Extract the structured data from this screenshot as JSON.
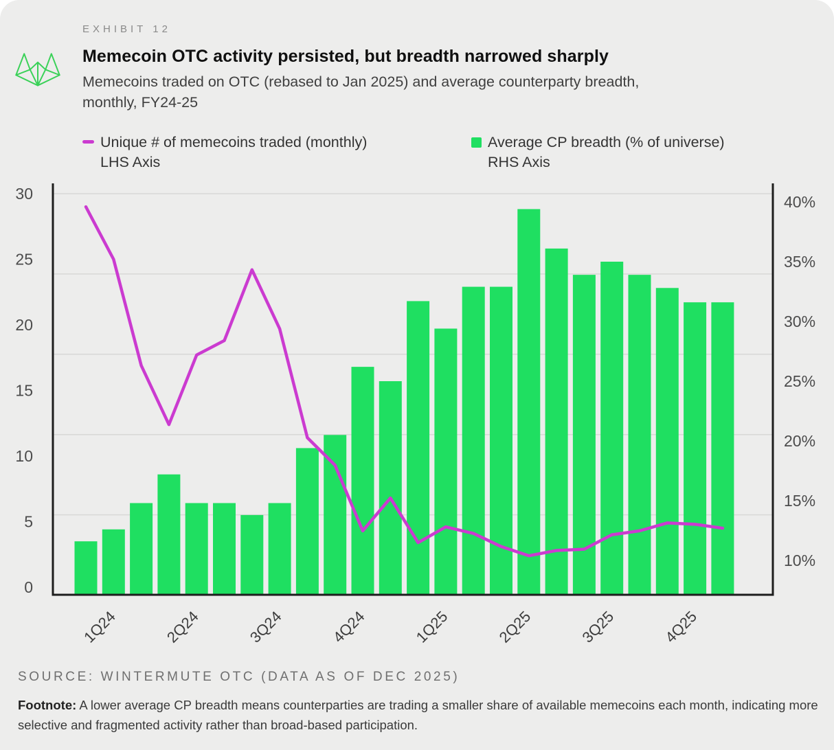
{
  "header": {
    "exhibit": "EXHIBIT 12",
    "title": "Memecoin OTC activity persisted, but breadth narrowed sharply",
    "subtitle_line1": "Memecoins traded on OTC (rebased to Jan 2025) and average counterparty breadth,",
    "subtitle_line2": "monthly,  FY24-25"
  },
  "legend": [
    {
      "label": "Unique # of memecoins traded (monthly)",
      "sublabel": "LHS Axis",
      "color": "#cb3bd0",
      "marker": "dash"
    },
    {
      "label": "Average CP breadth (% of universe)",
      "sublabel": "RHS Axis",
      "color": "#1fdf61",
      "marker": "square"
    }
  ],
  "chart_data": {
    "type": "combo",
    "title": "Memecoin OTC activity persisted, but breadth narrowed sharply",
    "quarter_labels": [
      "1Q24",
      "2Q24",
      "3Q24",
      "4Q24",
      "1Q25",
      "2Q25",
      "3Q25",
      "4Q25"
    ],
    "months_per_quarter": 3,
    "left_axis": {
      "label": "Unique # of memecoins traded (monthly), LHS",
      "min": 0,
      "max": 30,
      "ticks": [
        0,
        5,
        10,
        15,
        20,
        25,
        30
      ]
    },
    "right_axis": {
      "label": "Average CP breadth (% of universe), RHS",
      "min": 7.1,
      "max": 40,
      "ticks": [
        10,
        15,
        20,
        25,
        30,
        35,
        40
      ],
      "format": "percent"
    },
    "grid": "horizontal",
    "legend_position": "top",
    "series": [
      {
        "name": "Average CP breadth (% of universe)",
        "type": "bar",
        "axis": "right",
        "color": "#1fdf61",
        "values": [
          11.6,
          12.6,
          14.8,
          17.2,
          14.8,
          14.8,
          13.8,
          14.8,
          19.4,
          20.5,
          26.2,
          25.0,
          31.7,
          29.4,
          32.9,
          32.9,
          39.4,
          36.1,
          33.9,
          35.0,
          33.9,
          32.8,
          31.6,
          31.6
        ]
      },
      {
        "name": "Unique # of memecoins traded (monthly)",
        "type": "line",
        "axis": "left",
        "color": "#cb3bd0",
        "values": [
          29.0,
          25.0,
          16.9,
          12.4,
          17.7,
          18.8,
          24.2,
          19.7,
          11.4,
          9.3,
          4.3,
          6.8,
          3.4,
          4.6,
          4.1,
          3.1,
          2.4,
          2.8,
          2.9,
          4.0,
          4.3,
          4.9,
          4.8,
          4.5
        ]
      }
    ]
  },
  "footer": {
    "source": "SOURCE: WINTERMUTE OTC (DATA AS OF DEC 2025)",
    "footnote_label": "Footnote:",
    "footnote_text": "A lower average CP breadth means counterparties are trading a smaller share of available memecoins each month, indicating more selective and fragmented activity rather than broad-based participation."
  },
  "colors": {
    "background": "#ededec",
    "axis": "#1d1d1d",
    "gridline": "#d8d8d6",
    "bar_green": "#1fdf61",
    "line_magenta": "#cb3bd0",
    "logo_green": "#3ad158"
  }
}
